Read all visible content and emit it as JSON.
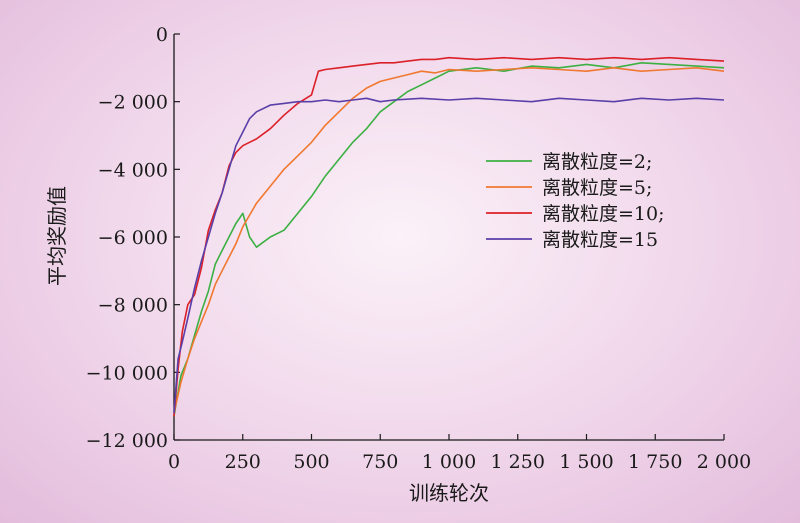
{
  "chart_data": {
    "type": "line",
    "xlabel": "训练轮次",
    "ylabel": "平均奖励值",
    "xlim": [
      0,
      2000
    ],
    "ylim": [
      -12000,
      0
    ],
    "x_ticks": [
      0,
      250,
      500,
      750,
      1000,
      1250,
      1500,
      1750,
      2000
    ],
    "x_tick_labels": [
      "0",
      "250",
      "500",
      "750",
      "1 000",
      "1 250",
      "1 500",
      "1 750",
      "2 000"
    ],
    "y_ticks": [
      0,
      -2000,
      -4000,
      -6000,
      -8000,
      -10000,
      -12000
    ],
    "y_tick_labels": [
      "0",
      "−2 000",
      "−4 000",
      "−6 000",
      "−8 000",
      "−10 000",
      "−12 000"
    ],
    "grid": false,
    "legend_position": "center-right",
    "series": [
      {
        "name": "离散粒度=2;",
        "color": "#3cb043",
        "x": [
          0,
          25,
          50,
          75,
          100,
          125,
          150,
          175,
          200,
          225,
          250,
          275,
          300,
          350,
          400,
          450,
          500,
          550,
          600,
          650,
          700,
          750,
          800,
          850,
          900,
          950,
          1000,
          1100,
          1200,
          1300,
          1400,
          1500,
          1600,
          1700,
          1800,
          1900,
          2000
        ],
        "y": [
          -11300,
          -10100,
          -9600,
          -8900,
          -8200,
          -7600,
          -6800,
          -6400,
          -6000,
          -5600,
          -5300,
          -6000,
          -6300,
          -6000,
          -5800,
          -5300,
          -4800,
          -4200,
          -3700,
          -3200,
          -2800,
          -2300,
          -2000,
          -1700,
          -1500,
          -1300,
          -1100,
          -1000,
          -1100,
          -950,
          -1000,
          -900,
          -1000,
          -850,
          -900,
          -950,
          -1000
        ]
      },
      {
        "name": "离散粒度=5;",
        "color": "#f07830",
        "x": [
          0,
          25,
          50,
          75,
          100,
          125,
          150,
          175,
          200,
          225,
          250,
          300,
          350,
          400,
          450,
          500,
          550,
          600,
          650,
          700,
          750,
          800,
          850,
          900,
          950,
          1000,
          1100,
          1200,
          1300,
          1400,
          1500,
          1600,
          1700,
          1800,
          1900,
          2000
        ],
        "y": [
          -11200,
          -10300,
          -9600,
          -9000,
          -8500,
          -8000,
          -7400,
          -7000,
          -6600,
          -6200,
          -5700,
          -5000,
          -4500,
          -4000,
          -3600,
          -3200,
          -2700,
          -2300,
          -1900,
          -1600,
          -1400,
          -1300,
          -1200,
          -1100,
          -1150,
          -1050,
          -1100,
          -1050,
          -1000,
          -1050,
          -1100,
          -1000,
          -1100,
          -1050,
          -1000,
          -1100
        ]
      },
      {
        "name": "离散粒度=10;",
        "color": "#dc2028",
        "x": [
          0,
          15,
          30,
          50,
          75,
          100,
          125,
          150,
          175,
          200,
          225,
          250,
          300,
          350,
          400,
          450,
          500,
          525,
          550,
          600,
          650,
          700,
          750,
          800,
          850,
          900,
          950,
          1000,
          1100,
          1200,
          1300,
          1400,
          1500,
          1600,
          1700,
          1800,
          1900,
          2000
        ],
        "y": [
          -11300,
          -9900,
          -8800,
          -8000,
          -7700,
          -6900,
          -5800,
          -5200,
          -4700,
          -3900,
          -3500,
          -3300,
          -3100,
          -2800,
          -2400,
          -2050,
          -1800,
          -1100,
          -1050,
          -1000,
          -950,
          -900,
          -850,
          -850,
          -800,
          -750,
          -750,
          -700,
          -750,
          -700,
          -750,
          -700,
          -750,
          -700,
          -750,
          -700,
          -750,
          -800
        ]
      },
      {
        "name": "离散粒度=15",
        "color": "#5a3fa8",
        "x": [
          0,
          15,
          30,
          50,
          75,
          100,
          125,
          150,
          175,
          200,
          225,
          250,
          275,
          300,
          350,
          400,
          450,
          500,
          550,
          600,
          650,
          700,
          750,
          800,
          900,
          1000,
          1100,
          1200,
          1300,
          1400,
          1500,
          1600,
          1700,
          1800,
          1900,
          2000
        ],
        "y": [
          -11200,
          -9600,
          -9100,
          -8400,
          -7500,
          -6700,
          -6000,
          -5300,
          -4700,
          -4000,
          -3300,
          -2900,
          -2500,
          -2300,
          -2100,
          -2050,
          -2000,
          -2000,
          -1950,
          -2000,
          -1950,
          -1900,
          -2000,
          -1950,
          -1900,
          -1950,
          -1900,
          -1950,
          -2000,
          -1900,
          -1950,
          -2000,
          -1900,
          -1950,
          -1900,
          -1950
        ]
      }
    ]
  }
}
